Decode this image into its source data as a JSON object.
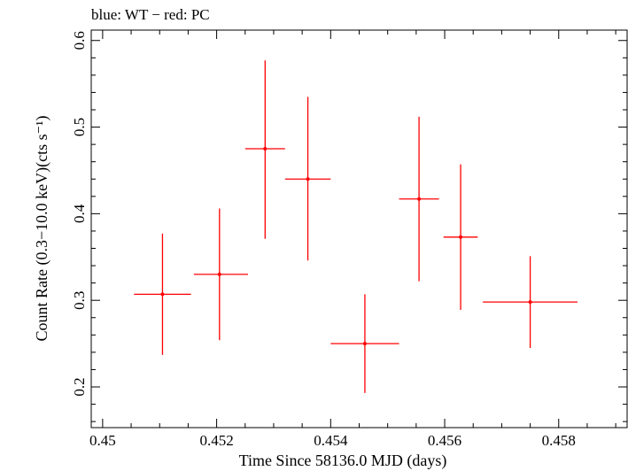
{
  "chart_data": {
    "type": "scatter",
    "title": "blue: WT − red: PC",
    "xlabel": "Time Since 58136.0 MJD (days)",
    "ylabel": "Count Rate (0.3−10.0 keV)(cts s⁻¹)",
    "xlim": [
      0.4498,
      0.4592
    ],
    "ylim": [
      0.153,
      0.612
    ],
    "xticks": [
      0.45,
      0.452,
      0.454,
      0.456,
      0.458
    ],
    "xtick_labels": [
      "0.45",
      "0.452",
      "0.454",
      "0.456",
      "0.458"
    ],
    "yticks": [
      0.2,
      0.3,
      0.4,
      0.5,
      0.6
    ],
    "ytick_labels": [
      "0.2",
      "0.3",
      "0.4",
      "0.5",
      "0.6"
    ],
    "grid": false,
    "series": [
      {
        "color": "#ff0000",
        "points": [
          {
            "x": 0.45105,
            "y": 0.307,
            "xerr_low": 0.0005,
            "xerr_high": 0.0005,
            "yerr_low": 0.07,
            "yerr_high": 0.07
          },
          {
            "x": 0.45205,
            "y": 0.33,
            "xerr_low": 0.00045,
            "xerr_high": 0.0005,
            "yerr_low": 0.076,
            "yerr_high": 0.076
          },
          {
            "x": 0.45285,
            "y": 0.475,
            "xerr_low": 0.00035,
            "xerr_high": 0.00035,
            "yerr_low": 0.104,
            "yerr_high": 0.102
          },
          {
            "x": 0.4536,
            "y": 0.44,
            "xerr_low": 0.0004,
            "xerr_high": 0.0004,
            "yerr_low": 0.094,
            "yerr_high": 0.095
          },
          {
            "x": 0.4546,
            "y": 0.25,
            "xerr_low": 0.0006,
            "xerr_high": 0.0006,
            "yerr_low": 0.057,
            "yerr_high": 0.057
          },
          {
            "x": 0.45555,
            "y": 0.417,
            "xerr_low": 0.00035,
            "xerr_high": 0.00035,
            "yerr_low": 0.095,
            "yerr_high": 0.095
          },
          {
            "x": 0.45628,
            "y": 0.373,
            "xerr_low": 0.0003,
            "xerr_high": 0.0003,
            "yerr_low": 0.084,
            "yerr_high": 0.084
          },
          {
            "x": 0.4575,
            "y": 0.298,
            "xerr_low": 0.00083,
            "xerr_high": 0.00083,
            "yerr_low": 0.053,
            "yerr_high": 0.053
          }
        ]
      }
    ]
  }
}
